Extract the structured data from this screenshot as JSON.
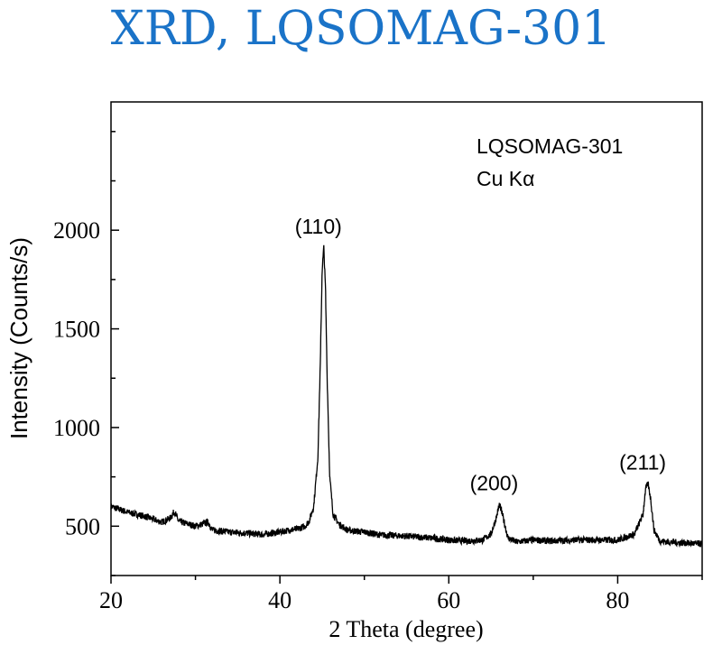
{
  "page": {
    "title": "XRD, LQSOMAG-301",
    "title_color": "#1a73c8"
  },
  "chart_data": {
    "type": "line",
    "title": "XRD, LQSOMAG-301",
    "xlabel": "2 Theta (degree)",
    "ylabel": "Intensity (Counts/s)",
    "xlim": [
      20,
      90
    ],
    "ylim": [
      250,
      2650
    ],
    "x_ticks": [
      20,
      40,
      60,
      80
    ],
    "y_ticks": [
      500,
      1000,
      1500,
      2000
    ],
    "grid": false,
    "line_color": "#000000",
    "annotations": [
      "LQSOMAG-301",
      "Cu Kα"
    ],
    "peak_labels": [
      {
        "text": "(110)",
        "x": 45.2,
        "y": 1910
      },
      {
        "text": "(200)",
        "x": 66.0,
        "y": 610
      },
      {
        "text": "(211)",
        "x": 83.6,
        "y": 715
      }
    ],
    "series": [
      {
        "x": [
          20,
          22,
          24,
          26,
          27,
          27.5,
          28,
          30,
          31.5,
          32,
          34,
          36,
          38,
          40,
          41,
          42,
          43,
          43.5,
          44,
          44.5,
          44.8,
          45.0,
          45.2,
          45.4,
          45.6,
          45.9,
          46.3,
          47,
          48,
          50,
          52,
          55,
          58,
          60,
          62,
          64,
          65,
          65.6,
          66.0,
          66.4,
          67,
          68,
          70,
          72,
          75,
          78,
          80,
          82,
          83,
          83.3,
          83.6,
          83.9,
          84.3,
          85,
          86,
          88,
          90
        ],
        "values": [
          600,
          570,
          550,
          520,
          540,
          575,
          525,
          500,
          520,
          480,
          470,
          465,
          458,
          470,
          480,
          485,
          500,
          530,
          600,
          850,
          1350,
          1800,
          1910,
          1700,
          1250,
          750,
          560,
          510,
          480,
          470,
          455,
          450,
          440,
          430,
          425,
          430,
          460,
          540,
          610,
          550,
          440,
          420,
          430,
          425,
          430,
          430,
          430,
          460,
          560,
          690,
          715,
          640,
          480,
          425,
          420,
          415,
          410
        ]
      }
    ]
  }
}
